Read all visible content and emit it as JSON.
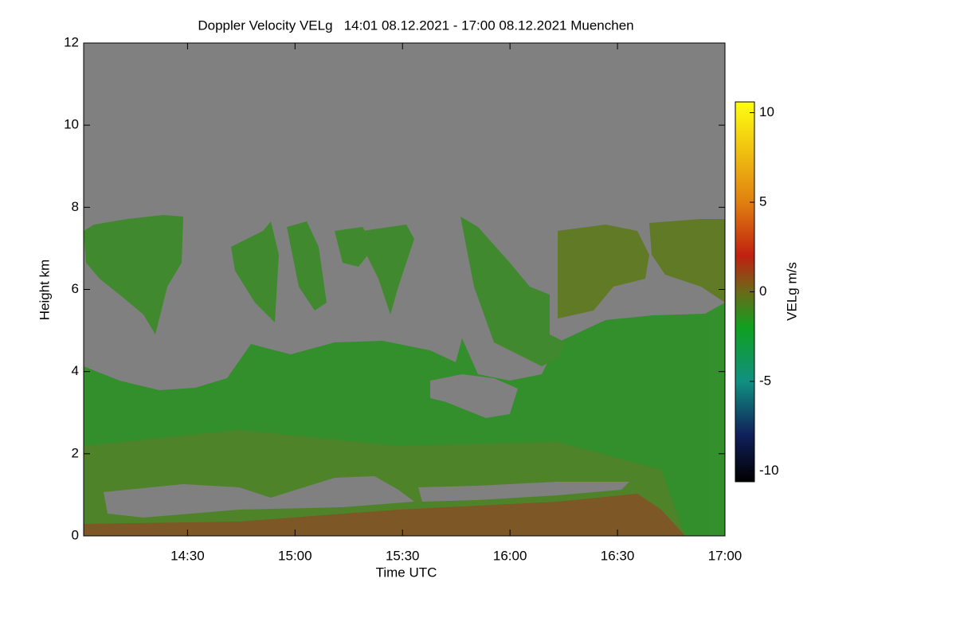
{
  "chart_data": {
    "type": "time-height",
    "title": "Doppler Velocity VELg   14:01 08.12.2021 - 17:00 08.12.2021 Muenchen",
    "x_label": "Time UTC",
    "y_label": "Height km",
    "xlim": [
      14.0167,
      17.0
    ],
    "xticks": [
      {
        "value": 14.5,
        "label": "14:30"
      },
      {
        "value": 15.0,
        "label": "15:00"
      },
      {
        "value": 15.5,
        "label": "15:30"
      },
      {
        "value": 16.0,
        "label": "16:00"
      },
      {
        "value": 16.5,
        "label": "16:30"
      },
      {
        "value": 17.0,
        "label": "17:00"
      }
    ],
    "ylim": [
      0,
      12
    ],
    "yticks": [
      0,
      2,
      4,
      6,
      8,
      10,
      12
    ],
    "colorbar": {
      "label": "VELg m/s",
      "lim": [
        -10.6,
        10.6
      ],
      "ticks": [
        -10,
        -5,
        0,
        5,
        10
      ],
      "colorscale": [
        [
          -10.6,
          "#000000"
        ],
        [
          -8,
          "#10205a"
        ],
        [
          -5,
          "#109080"
        ],
        [
          -2,
          "#10a020"
        ],
        [
          0,
          "#6a6a18"
        ],
        [
          2,
          "#c02010"
        ],
        [
          5,
          "#e08010"
        ],
        [
          10.6,
          "#ffff10"
        ]
      ]
    },
    "background_color": "#808080"
  }
}
